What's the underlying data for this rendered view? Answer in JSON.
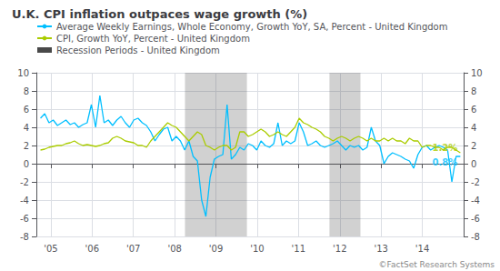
{
  "chart_data": {
    "type": "line",
    "title": "U.K. CPI inflation outpaces wage growth (%)",
    "source": "©FactSet Research Systems",
    "x": [
      2004.75,
      2004.8527,
      2004.9555,
      2005.0582,
      2005.1609,
      2005.2636,
      2005.3664,
      2005.4691,
      2005.5718,
      2005.6745,
      2005.7773,
      2005.88,
      2005.9827,
      2006.0855,
      2006.1882,
      2006.2909,
      2006.3936,
      2006.4964,
      2006.5991,
      2006.7018,
      2006.8045,
      2006.9073,
      2007.01,
      2007.1127,
      2007.2155,
      2007.3182,
      2007.4209,
      2007.5236,
      2007.6264,
      2007.7291,
      2007.8318,
      2007.9345,
      2008.0373,
      2008.14,
      2008.2427,
      2008.3455,
      2008.4482,
      2008.5509,
      2008.6536,
      2008.7564,
      2008.8591,
      2008.9618,
      2009.0645,
      2009.1673,
      2009.27,
      2009.3727,
      2009.4755,
      2009.5782,
      2009.6809,
      2009.7836,
      2009.8864,
      2009.9891,
      2010.0918,
      2010.1945,
      2010.2973,
      2010.4,
      2010.5027,
      2010.6055,
      2010.7082,
      2010.8109,
      2010.9136,
      2011.0164,
      2011.1191,
      2011.2218,
      2011.3245,
      2011.4273,
      2011.53,
      2011.6327,
      2011.7355,
      2011.8382,
      2011.9409,
      2012.0436,
      2012.1464,
      2012.2491,
      2012.3518,
      2012.4545,
      2012.5573,
      2012.66,
      2012.7627,
      2012.8655,
      2012.9682,
      2013.0709,
      2013.1736,
      2013.2764,
      2013.3791,
      2013.4818,
      2013.5845,
      2013.6873,
      2013.79,
      2013.8927,
      2013.9955,
      2014.0982,
      2014.2009,
      2014.3036,
      2014.4064,
      2014.5091,
      2014.6118,
      2014.7145,
      2014.8173,
      2014.92
    ],
    "series": [
      {
        "name": "Average Weekly Earnings, Whole Economy, Growth YoY, SA, Percent - United Kingdom",
        "type": "line",
        "color": "#00bfff",
        "values": [
          5.0,
          5.5,
          4.5,
          4.8,
          4.2,
          4.5,
          4.8,
          4.3,
          4.5,
          4.0,
          4.3,
          4.5,
          6.5,
          4.0,
          7.5,
          4.5,
          4.8,
          4.2,
          4.8,
          5.2,
          4.5,
          4.0,
          4.8,
          5.0,
          4.5,
          4.2,
          3.5,
          2.5,
          3.2,
          3.8,
          4.0,
          2.5,
          3.0,
          2.5,
          1.5,
          2.5,
          0.8,
          0.3,
          -4.0,
          -5.8,
          -1.5,
          0.5,
          0.8,
          1.0,
          6.5,
          0.5,
          1.0,
          1.8,
          1.5,
          2.2,
          2.0,
          1.5,
          2.5,
          2.0,
          1.8,
          2.2,
          4.5,
          2.0,
          2.5,
          2.2,
          2.5,
          4.5,
          3.5,
          2.0,
          2.2,
          2.5,
          2.0,
          1.8,
          2.0,
          2.2,
          2.5,
          2.0,
          1.5,
          2.0,
          1.8,
          2.0,
          1.5,
          1.8,
          4.0,
          2.5,
          2.0,
          0.0,
          0.8,
          1.2,
          1.0,
          0.8,
          0.5,
          0.3,
          -0.5,
          1.0,
          1.8,
          2.0,
          1.5,
          1.8,
          2.0,
          1.8,
          1.5,
          -2.0,
          0.8,
          0.8
        ]
      },
      {
        "name": "CPI, Growth YoY, Percent - United Kingdom",
        "type": "line",
        "color": "#aacc00",
        "values": [
          1.5,
          1.6,
          1.8,
          1.9,
          2.0,
          2.0,
          2.2,
          2.3,
          2.5,
          2.2,
          2.0,
          2.1,
          2.0,
          1.9,
          2.0,
          2.2,
          2.3,
          2.8,
          3.0,
          2.8,
          2.5,
          2.4,
          2.3,
          2.0,
          2.0,
          1.8,
          2.5,
          3.0,
          3.5,
          4.0,
          4.5,
          4.2,
          4.0,
          3.5,
          3.0,
          2.5,
          3.0,
          3.5,
          3.2,
          2.0,
          1.8,
          1.5,
          1.8,
          2.0,
          2.0,
          1.5,
          1.8,
          3.5,
          3.5,
          3.0,
          3.2,
          3.5,
          3.8,
          3.5,
          3.0,
          3.2,
          3.5,
          3.2,
          3.0,
          3.5,
          4.0,
          5.0,
          4.5,
          4.3,
          4.0,
          3.8,
          3.5,
          3.0,
          2.8,
          2.5,
          2.8,
          3.0,
          2.8,
          2.5,
          2.8,
          3.0,
          2.8,
          2.5,
          2.8,
          2.5,
          2.5,
          2.8,
          2.5,
          2.8,
          2.5,
          2.5,
          2.2,
          2.8,
          2.5,
          2.5,
          1.8,
          2.0,
          2.0,
          1.8,
          1.8,
          1.5,
          1.8,
          1.8,
          1.5,
          1.2
        ]
      },
      {
        "name": "Recession Periods - United Kingdom",
        "type": "span",
        "color": "#494949",
        "spans": [
          [
            2008.25,
            2009.75
          ],
          [
            2011.75,
            2012.5
          ]
        ]
      }
    ],
    "annotations": [
      {
        "text": "1.2%",
        "x": 2014.85,
        "y": 1.2,
        "color": "#aacc00"
      },
      {
        "text": "0.8%",
        "x": 2014.85,
        "y": 0.8,
        "color": "#00bfff"
      }
    ],
    "xlim": [
      2004.65,
      2015.0
    ],
    "xticks": [
      {
        "value": 2005,
        "label": "'05"
      },
      {
        "value": 2006,
        "label": "'06"
      },
      {
        "value": 2007,
        "label": "'07"
      },
      {
        "value": 2008,
        "label": "'08"
      },
      {
        "value": 2009,
        "label": "'09"
      },
      {
        "value": 2010,
        "label": "'10"
      },
      {
        "value": 2011,
        "label": "'11"
      },
      {
        "value": 2012,
        "label": "'12"
      },
      {
        "value": 2013,
        "label": "'13"
      },
      {
        "value": 2014,
        "label": "'14"
      }
    ],
    "ylim": [
      -8,
      10
    ],
    "yticks": [
      -8,
      -6,
      -4,
      -2,
      0,
      2,
      4,
      6,
      8,
      10
    ],
    "y2lim": [
      -8,
      10
    ],
    "y2ticks": [
      -8,
      -6,
      -4,
      -2,
      0,
      2,
      4,
      6,
      8,
      10
    ],
    "grid": true,
    "legend": "upper left"
  }
}
